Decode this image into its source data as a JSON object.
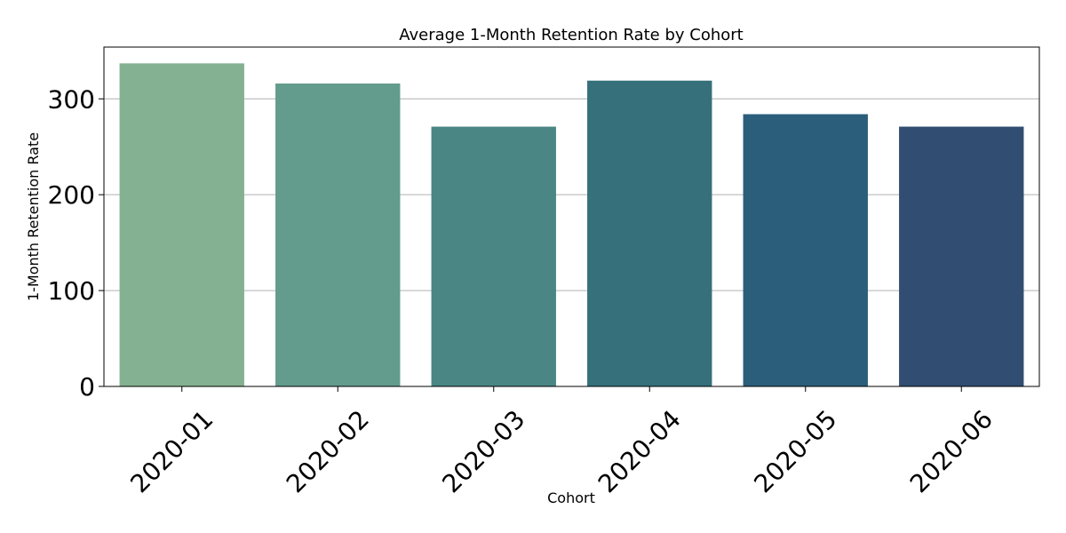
{
  "chart_data": {
    "type": "bar",
    "title": "Average 1-Month Retention Rate by Cohort",
    "xlabel": "Cohort",
    "ylabel": "1-Month Retention Rate",
    "categories": [
      "2020-01",
      "2020-02",
      "2020-03",
      "2020-04",
      "2020-05",
      "2020-06"
    ],
    "values": [
      337,
      316,
      271,
      319,
      284,
      271
    ],
    "colors": [
      "#84b191",
      "#639c8c",
      "#4a8684",
      "#35707b",
      "#2b5e7a",
      "#314e72"
    ],
    "ylim": [
      0,
      354
    ],
    "yticks": [
      0,
      100,
      200,
      300
    ],
    "grid": "y",
    "legend": "none"
  }
}
